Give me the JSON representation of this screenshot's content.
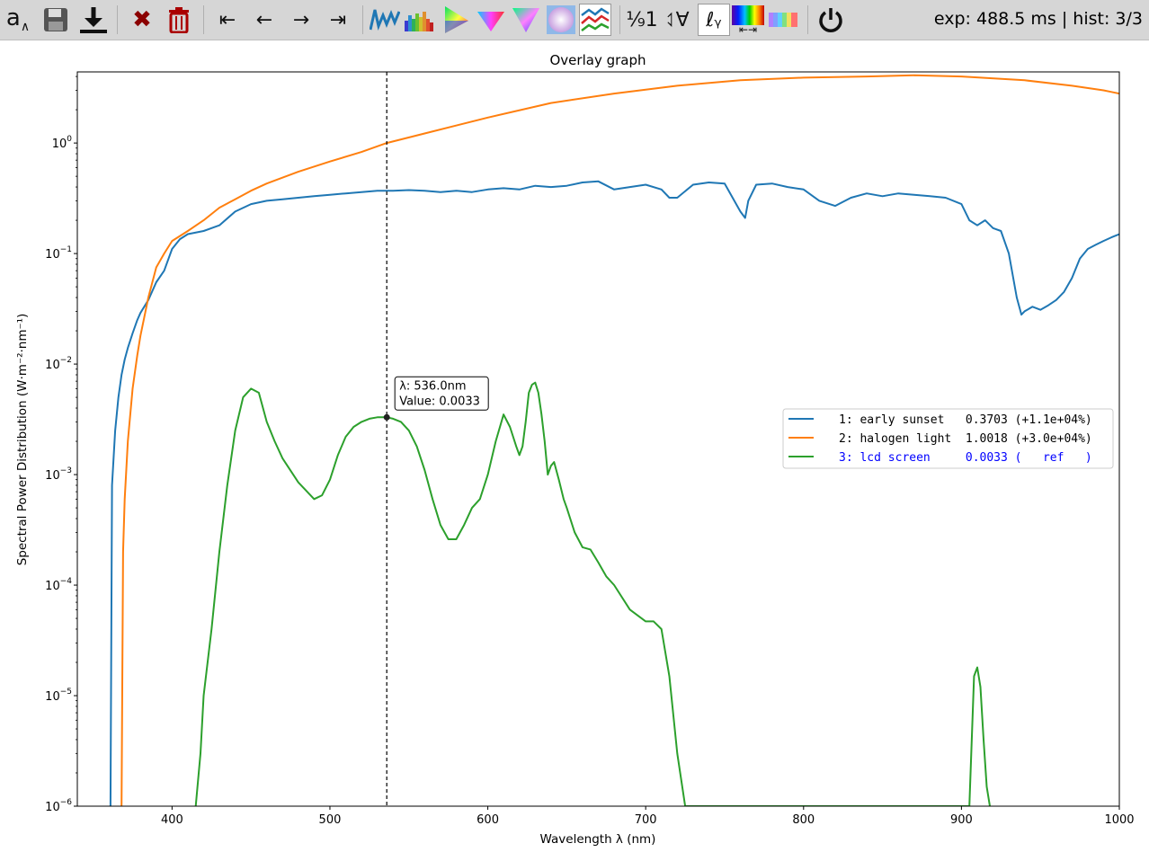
{
  "toolbar": {
    "buttons": [
      {
        "name": "annotate-button",
        "icon": "annotate-icon",
        "label": "a∧"
      },
      {
        "name": "save-button",
        "icon": "floppy-disk-icon",
        "label": ""
      },
      {
        "name": "download-button",
        "icon": "download-icon",
        "label": ""
      },
      {
        "name": "clear-button",
        "icon": "x-icon",
        "label": "✖"
      },
      {
        "name": "delete-button",
        "icon": "trash-icon",
        "label": ""
      },
      {
        "name": "first-button",
        "icon": "first-icon",
        "label": "⇤"
      },
      {
        "name": "previous-button",
        "icon": "left-arrow-icon",
        "label": "←"
      },
      {
        "name": "next-button",
        "icon": "right-arrow-icon",
        "label": "→"
      },
      {
        "name": "last-button",
        "icon": "last-icon",
        "label": "⇥"
      },
      {
        "name": "spectrum-graph-button",
        "icon": "spectrum-line-icon",
        "label": ""
      },
      {
        "name": "histogram-button",
        "icon": "histogram-icon",
        "label": ""
      },
      {
        "name": "cie-1931-button",
        "icon": "chromaticity-icon",
        "label": ""
      },
      {
        "name": "cie-1976-button",
        "icon": "chromaticity-uv-icon",
        "label": ""
      },
      {
        "name": "cie-1960-button",
        "icon": "chromaticity-triangle-icon",
        "label": ""
      },
      {
        "name": "color-circle-button",
        "icon": "color-circle-icon",
        "label": ""
      },
      {
        "name": "overlay-graph-button",
        "icon": "overlay-graph-icon",
        "label": ""
      },
      {
        "name": "normalize-one-button",
        "icon": "normalize-icon",
        "label": "⅑1"
      },
      {
        "name": "normalize-all-button",
        "icon": "normalize-all-icon",
        "label": "⥑∀"
      },
      {
        "name": "log-scale-button",
        "icon": "log-gamma-icon",
        "label": "ℓᵧ"
      },
      {
        "name": "wavelength-range-button",
        "icon": "spectrum-range-icon",
        "label": "⇤⇥"
      },
      {
        "name": "spectrum-bar-button",
        "icon": "spectrum-bar-icon",
        "label": ""
      },
      {
        "name": "power-button",
        "icon": "power-icon",
        "label": "⏻"
      }
    ],
    "status": "exp: 488.5 ms | hist: 3/3"
  },
  "chart_data": {
    "type": "line",
    "title": "Overlay graph",
    "xlabel": "Wavelength λ (nm)",
    "ylabel": "Spectral Power Distribution (W·m⁻²·nm⁻¹)",
    "y_scale": "log",
    "xlim": [
      340,
      1000
    ],
    "ylim": [
      1e-06,
      4.4
    ],
    "x_ticks": [
      400,
      500,
      600,
      700,
      800,
      900,
      1000
    ],
    "y_ticks": [
      {
        "value": 1e-06,
        "base": "10",
        "exp": "−6"
      },
      {
        "value": 1e-05,
        "base": "10",
        "exp": "−5"
      },
      {
        "value": 0.0001,
        "base": "10",
        "exp": "−4"
      },
      {
        "value": 0.001,
        "base": "10",
        "exp": "−3"
      },
      {
        "value": 0.01,
        "base": "10",
        "exp": "−2"
      },
      {
        "value": 0.1,
        "base": "10",
        "exp": "−1"
      },
      {
        "value": 1,
        "base": "10",
        "exp": "0"
      }
    ],
    "grid": false,
    "legend_position": "right",
    "cursor": {
      "x": 536.0,
      "y": 0.0033,
      "label_line1": "λ: 536.0nm",
      "label_line2": "Value: 0.0033"
    },
    "series": [
      {
        "name": "early sunset",
        "legend_text": "1: early sunset   0.3703 (+1.1e+04%)",
        "color": "#1f77b4",
        "x": [
          361,
          362,
          364,
          366,
          368,
          370,
          372,
          375,
          378,
          380,
          385,
          390,
          395,
          400,
          405,
          410,
          420,
          430,
          440,
          450,
          460,
          470,
          480,
          490,
          500,
          510,
          520,
          530,
          540,
          550,
          560,
          570,
          580,
          590,
          600,
          610,
          620,
          630,
          640,
          650,
          660,
          670,
          680,
          690,
          700,
          710,
          715,
          720,
          730,
          740,
          750,
          760,
          763,
          765,
          770,
          780,
          790,
          800,
          810,
          820,
          830,
          840,
          850,
          860,
          870,
          880,
          890,
          900,
          905,
          910,
          915,
          920,
          925,
          930,
          935,
          938,
          940,
          945,
          950,
          955,
          960,
          965,
          970,
          975,
          980,
          985,
          990,
          995,
          1000
        ],
        "y": [
          1e-06,
          0.0008,
          0.0025,
          0.005,
          0.008,
          0.011,
          0.014,
          0.019,
          0.025,
          0.029,
          0.038,
          0.055,
          0.07,
          0.11,
          0.135,
          0.15,
          0.16,
          0.18,
          0.24,
          0.28,
          0.3,
          0.31,
          0.32,
          0.33,
          0.34,
          0.35,
          0.36,
          0.37,
          0.37,
          0.375,
          0.37,
          0.36,
          0.37,
          0.36,
          0.38,
          0.39,
          0.38,
          0.41,
          0.4,
          0.41,
          0.44,
          0.45,
          0.38,
          0.4,
          0.42,
          0.38,
          0.32,
          0.32,
          0.42,
          0.44,
          0.43,
          0.24,
          0.21,
          0.3,
          0.42,
          0.43,
          0.4,
          0.38,
          0.3,
          0.27,
          0.32,
          0.35,
          0.33,
          0.35,
          0.34,
          0.33,
          0.32,
          0.28,
          0.2,
          0.18,
          0.2,
          0.17,
          0.16,
          0.1,
          0.04,
          0.028,
          0.03,
          0.033,
          0.031,
          0.034,
          0.038,
          0.045,
          0.06,
          0.09,
          0.11,
          0.12,
          0.13,
          0.14,
          0.15
        ]
      },
      {
        "name": "halogen light",
        "legend_text": "2: halogen light  1.0018 (+3.0e+04%)",
        "color": "#ff7f0e",
        "x": [
          368,
          369,
          370,
          372,
          375,
          378,
          380,
          385,
          390,
          395,
          400,
          410,
          420,
          430,
          440,
          450,
          460,
          480,
          500,
          520,
          536,
          560,
          600,
          640,
          680,
          720,
          760,
          800,
          840,
          870,
          900,
          940,
          970,
          990,
          995,
          1000
        ],
        "y": [
          1e-06,
          0.0002,
          0.0006,
          0.002,
          0.006,
          0.012,
          0.018,
          0.04,
          0.075,
          0.1,
          0.13,
          0.16,
          0.2,
          0.26,
          0.31,
          0.37,
          0.43,
          0.55,
          0.68,
          0.83,
          1.0,
          1.22,
          1.7,
          2.3,
          2.8,
          3.3,
          3.7,
          3.9,
          4.0,
          4.1,
          4.0,
          3.7,
          3.3,
          3.0,
          2.9,
          2.8
        ]
      },
      {
        "name": "lcd screen",
        "legend_text": "3: lcd screen     0.0033 (   ref   )",
        "color": "#2ca02c",
        "x": [
          415,
          418,
          420,
          425,
          430,
          435,
          440,
          445,
          450,
          455,
          460,
          465,
          470,
          480,
          490,
          495,
          500,
          505,
          510,
          515,
          520,
          525,
          530,
          536,
          540,
          545,
          550,
          555,
          560,
          565,
          570,
          575,
          580,
          585,
          590,
          595,
          600,
          605,
          610,
          614,
          618,
          620,
          622,
          624,
          626,
          628,
          630,
          632,
          634,
          636,
          638,
          640,
          642,
          645,
          648,
          650,
          655,
          660,
          665,
          670,
          675,
          680,
          690,
          700,
          705,
          710,
          715,
          720,
          725,
          728,
          900,
          905,
          908,
          910,
          912,
          914,
          916,
          918
        ],
        "y": [
          1e-06,
          3e-06,
          1e-05,
          4e-05,
          0.0002,
          0.0008,
          0.0025,
          0.005,
          0.006,
          0.0055,
          0.003,
          0.002,
          0.0014,
          0.00085,
          0.0006,
          0.00065,
          0.0009,
          0.0015,
          0.0022,
          0.0027,
          0.003,
          0.0032,
          0.0033,
          0.0033,
          0.0032,
          0.003,
          0.0025,
          0.0018,
          0.0011,
          0.0006,
          0.00035,
          0.00026,
          0.00026,
          0.00035,
          0.0005,
          0.0006,
          0.001,
          0.002,
          0.0035,
          0.0027,
          0.0018,
          0.0015,
          0.0018,
          0.003,
          0.0055,
          0.0065,
          0.0068,
          0.0055,
          0.0035,
          0.002,
          0.001,
          0.0012,
          0.0013,
          0.0009,
          0.0006,
          0.0005,
          0.0003,
          0.00022,
          0.00021,
          0.00016,
          0.00012,
          0.0001,
          6e-05,
          4.7e-05,
          4.7e-05,
          4e-05,
          1.5e-05,
          3e-06,
          1e-06,
          1e-06,
          1e-06,
          1e-06,
          1.5e-05,
          1.8e-05,
          1.2e-05,
          4e-06,
          1.5e-06,
          1e-06
        ]
      }
    ]
  }
}
